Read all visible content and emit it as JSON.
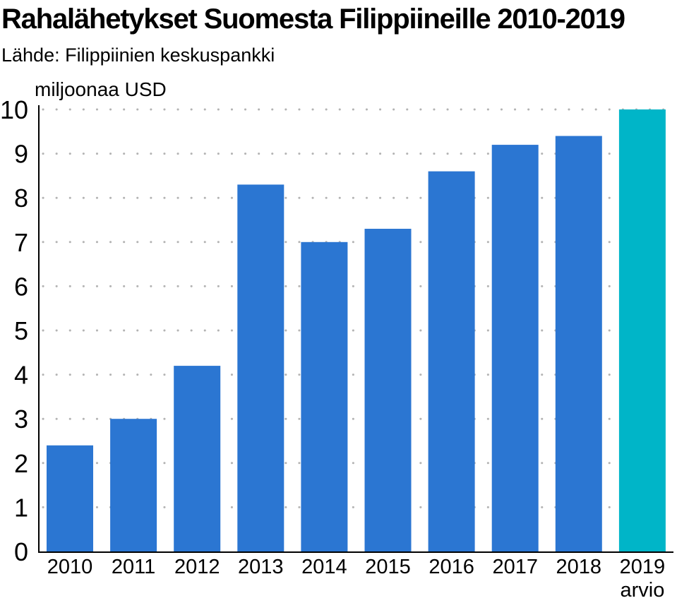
{
  "header": {
    "title": "Rahalähetykset Suomesta Filippiineille 2010-2019",
    "source": "Lähde: Filippiinien keskuspankki"
  },
  "chart_data": {
    "type": "bar",
    "title": "Rahalähetykset Suomesta Filippiineille 2010-2019",
    "subtitle": "Lähde: Filippiinien keskuspankki",
    "xlabel": "",
    "ylabel": "miljoonaa USD",
    "ylim": [
      0,
      10
    ],
    "yticks": [
      0,
      1,
      2,
      3,
      4,
      5,
      6,
      7,
      8,
      9,
      10
    ],
    "grid": "horizontal-dotted",
    "categories": [
      "2010",
      "2011",
      "2012",
      "2013",
      "2014",
      "2015",
      "2016",
      "2017",
      "2018",
      "2019"
    ],
    "category_sublabels": [
      "",
      "",
      "",
      "",
      "",
      "",
      "",
      "",
      "",
      "arvio"
    ],
    "values": [
      2.4,
      3.0,
      4.2,
      8.3,
      7.0,
      7.3,
      8.6,
      9.2,
      9.4,
      10.0
    ],
    "colors": {
      "actual": "#2b76d2",
      "estimate": "#00b5c8",
      "grid": "#b3b3b3",
      "axis": "#000000"
    }
  }
}
